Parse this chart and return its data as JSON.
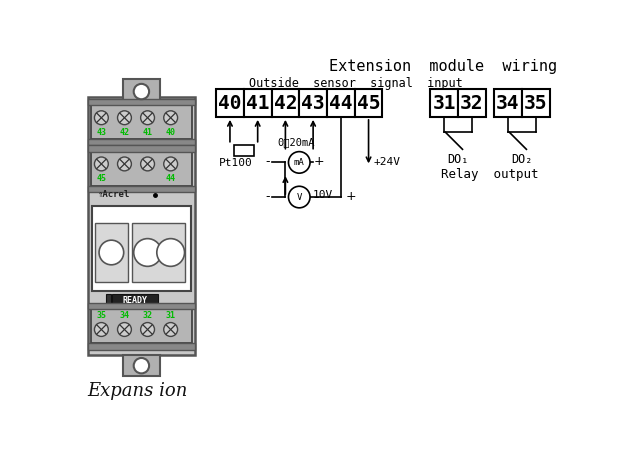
{
  "title": "Extension  module  wiring",
  "subtitle": "Outside  sensor  signal  input",
  "expansion_label": "Expans ion",
  "relay_output_label": "Relay  output",
  "top_terminals": [
    "40",
    "41",
    "42",
    "43",
    "44",
    "45"
  ],
  "right_group1": [
    "31",
    "32"
  ],
  "right_group2": [
    "34",
    "35"
  ],
  "do1_label": "DO₁",
  "do2_label": "DO₂",
  "pt100_label": "Pt100",
  "current_label": "0～20mA",
  "voltage_label": "10V",
  "plus24v_label": "+24V",
  "mA_label": "mA",
  "V_label": "V",
  "bg_color": "#ffffff",
  "line_color": "#000000",
  "green_color": "#00bb00",
  "device_bg": "#d0d0d0",
  "screw_color": "#aaaaaa"
}
